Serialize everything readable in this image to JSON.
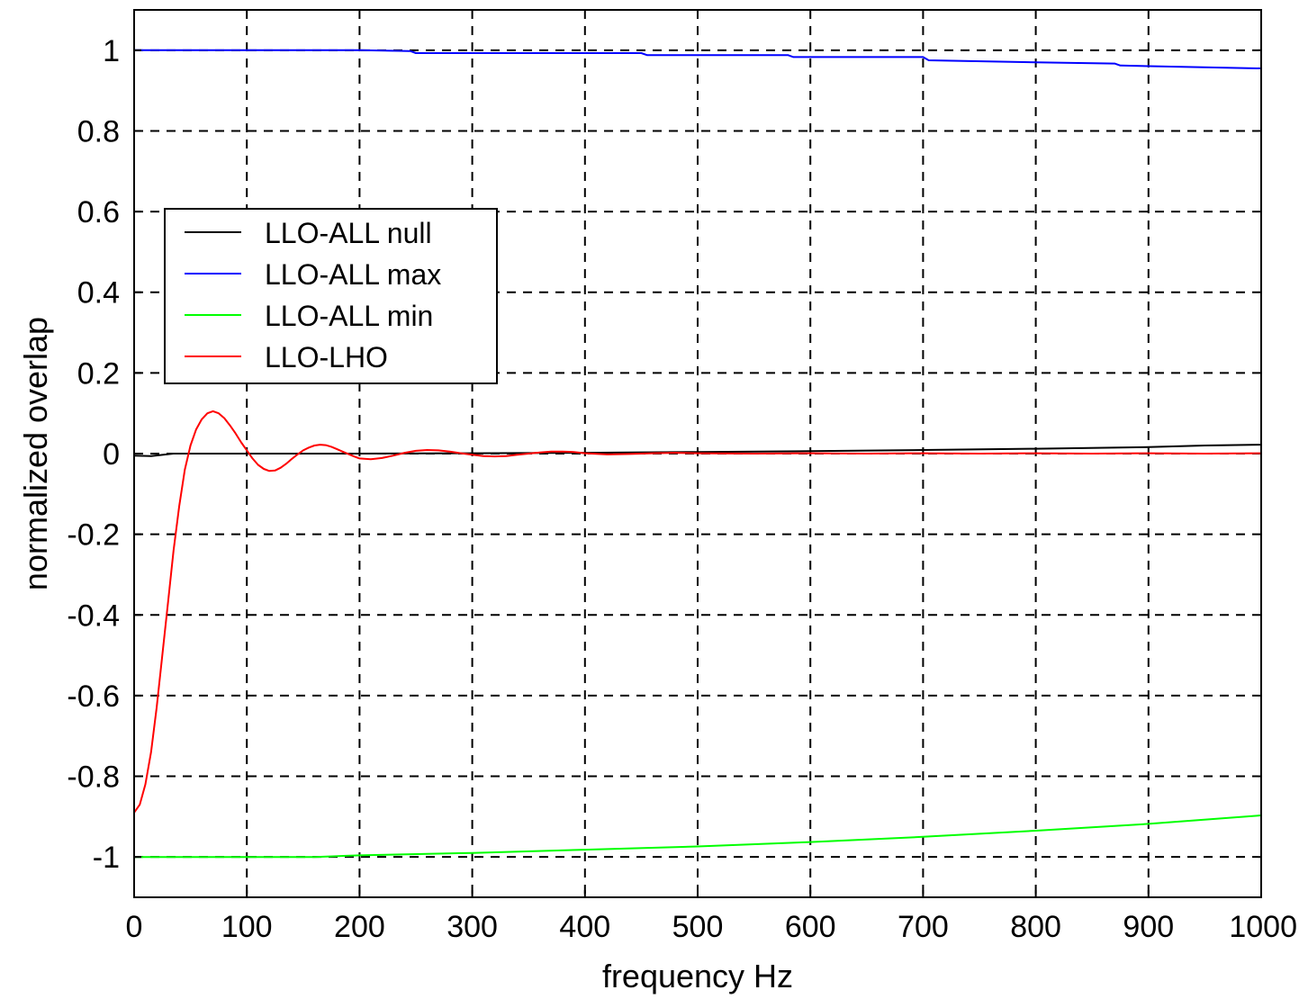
{
  "chart_data": {
    "type": "line",
    "title": "",
    "xlabel": "frequency Hz",
    "ylabel": "normalized overlap",
    "xlim": [
      0,
      1000
    ],
    "ylim": [
      -1.1,
      1.1
    ],
    "xticks": [
      0,
      100,
      200,
      300,
      400,
      500,
      600,
      700,
      800,
      900,
      1000
    ],
    "xtick_labels": [
      "0",
      "100",
      "200",
      "300",
      "400",
      "500",
      "600",
      "700",
      "800",
      "900",
      "1000"
    ],
    "yticks": [
      1,
      0.8,
      0.6,
      0.4,
      0.2,
      0,
      -0.2,
      -0.4,
      -0.6,
      -0.8,
      -1
    ],
    "ytick_labels": [
      "1",
      "0.8",
      "0.6",
      "0.4",
      "0.2",
      "0",
      "-0.2",
      "-0.4",
      "-0.6",
      "-0.8",
      "-1"
    ],
    "grid": true,
    "grid_style": "dashed",
    "legend_position": "upper-left",
    "series": [
      {
        "name": "LLO-ALL null",
        "color": "#000000",
        "x": [
          0,
          15,
          35,
          100,
          200,
          300,
          400,
          500,
          600,
          700,
          800,
          900,
          950,
          1000
        ],
        "y": [
          -0.005,
          -0.006,
          0.0,
          0.0,
          0.0,
          0.001,
          0.002,
          0.004,
          0.006,
          0.009,
          0.012,
          0.016,
          0.02,
          0.022
        ]
      },
      {
        "name": "LLO-ALL max",
        "color": "#0000ff",
        "x": [
          0,
          100,
          200,
          245,
          250,
          400,
          450,
          455,
          580,
          585,
          700,
          705,
          800,
          870,
          875,
          1000
        ],
        "y": [
          1.0,
          1.0,
          1.0,
          0.998,
          0.993,
          0.993,
          0.993,
          0.988,
          0.988,
          0.983,
          0.983,
          0.975,
          0.97,
          0.967,
          0.962,
          0.955
        ]
      },
      {
        "name": "LLO-ALL min",
        "color": "#00ff00",
        "x": [
          0,
          100,
          160,
          200,
          300,
          400,
          500,
          600,
          700,
          800,
          900,
          1000
        ],
        "y": [
          -1.0,
          -1.0,
          -1.0,
          -0.996,
          -0.99,
          -0.982,
          -0.974,
          -0.963,
          -0.95,
          -0.935,
          -0.918,
          -0.897
        ]
      },
      {
        "name": "LLO-LHO",
        "color": "#ff0000",
        "x": [
          0,
          5,
          10,
          15,
          20,
          25,
          30,
          35,
          40,
          45,
          50,
          55,
          60,
          65,
          70,
          75,
          80,
          85,
          90,
          95,
          100,
          105,
          110,
          115,
          120,
          125,
          130,
          135,
          140,
          145,
          150,
          155,
          160,
          165,
          170,
          175,
          180,
          185,
          190,
          195,
          200,
          210,
          220,
          230,
          240,
          250,
          260,
          270,
          280,
          290,
          300,
          310,
          320,
          330,
          340,
          350,
          360,
          370,
          380,
          390,
          400,
          420,
          440,
          460,
          480,
          500,
          550,
          600,
          650,
          700,
          750,
          800,
          850,
          900,
          950,
          1000
        ],
        "y": [
          -0.89,
          -0.87,
          -0.82,
          -0.74,
          -0.63,
          -0.5,
          -0.37,
          -0.24,
          -0.13,
          -0.04,
          0.02,
          0.06,
          0.085,
          0.1,
          0.105,
          0.1,
          0.088,
          0.07,
          0.05,
          0.028,
          0.008,
          -0.012,
          -0.028,
          -0.038,
          -0.043,
          -0.042,
          -0.035,
          -0.025,
          -0.013,
          -0.002,
          0.008,
          0.015,
          0.02,
          0.022,
          0.021,
          0.017,
          0.011,
          0.005,
          -0.001,
          -0.007,
          -0.012,
          -0.014,
          -0.011,
          -0.005,
          0.002,
          0.007,
          0.009,
          0.008,
          0.005,
          0.001,
          -0.003,
          -0.006,
          -0.007,
          -0.006,
          -0.003,
          0.0,
          0.003,
          0.005,
          0.005,
          0.004,
          0.001,
          -0.002,
          -0.001,
          0.001,
          0.002,
          0.001,
          0.0,
          0.001,
          0.0,
          0.001,
          0.0,
          0.001,
          0.0,
          0.001,
          0.0,
          0.001
        ]
      }
    ]
  }
}
